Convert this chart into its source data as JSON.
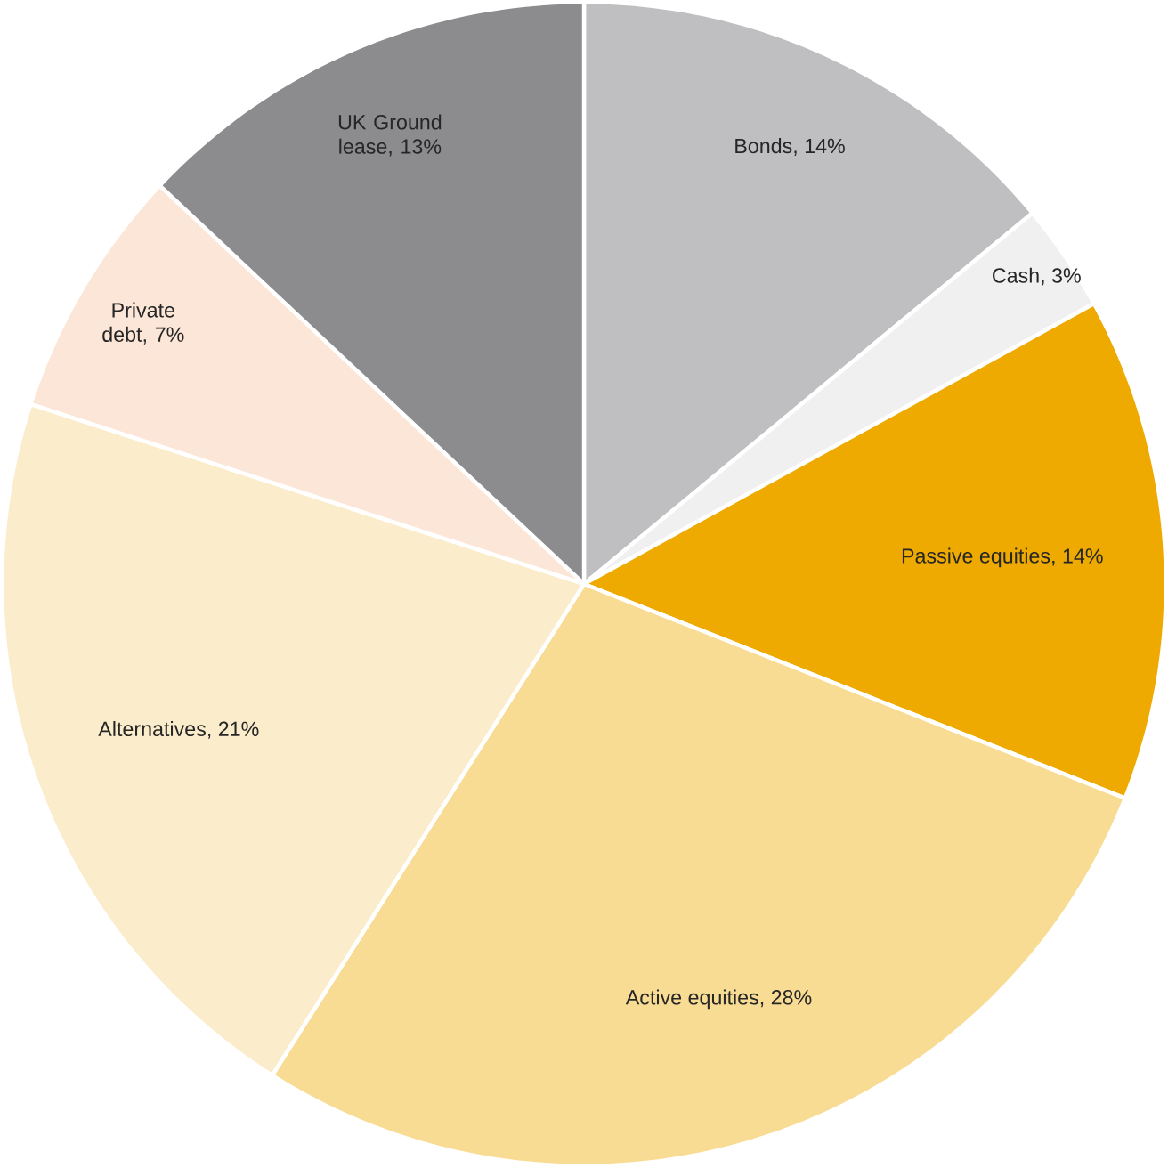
{
  "chart_data": {
    "type": "pie",
    "categories": [
      "Bonds, 14%",
      "Cash, 3%",
      "Passive equities, 14%",
      "Active equities, 28%",
      "Alternatives, 21%",
      "Private debt, 7%",
      "UK Ground lease, 13%"
    ],
    "values": [
      14,
      3,
      14,
      28,
      21,
      7,
      13
    ],
    "colors": [
      "#bfbfc1",
      "#f0f0f0",
      "#eeaa00",
      "#f8dc94",
      "#fbeccb",
      "#fce6d8",
      "#8c8c8f"
    ]
  }
}
